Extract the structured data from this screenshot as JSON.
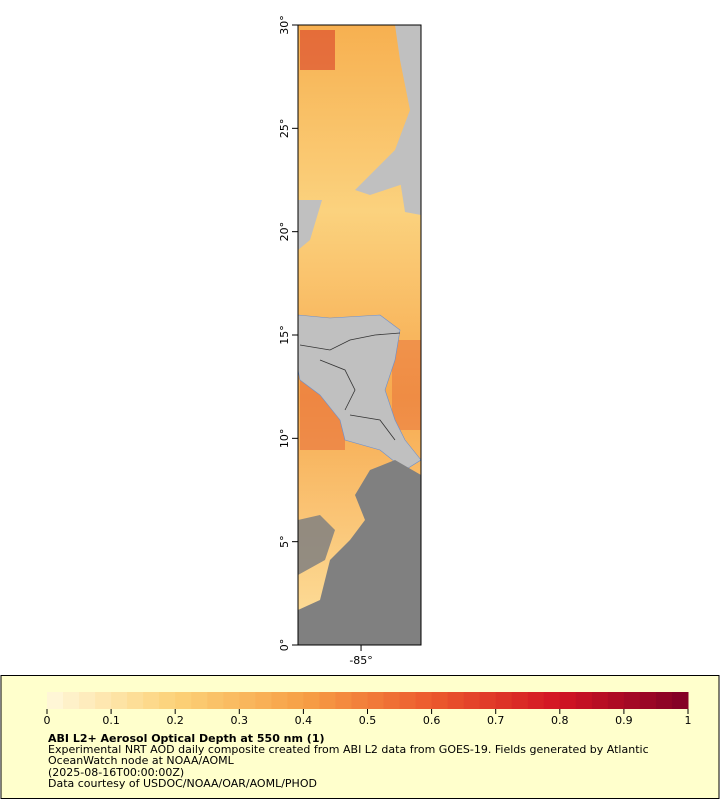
{
  "map": {
    "lat_axis": {
      "lim": [
        0,
        30
      ],
      "ticks": [
        {
          "value": 0,
          "label": "0°"
        },
        {
          "value": 5,
          "label": "5°"
        },
        {
          "value": 10,
          "label": "10°"
        },
        {
          "value": 15,
          "label": "15°"
        },
        {
          "value": 20,
          "label": "20°"
        },
        {
          "value": 25,
          "label": "25°"
        },
        {
          "value": 30,
          "label": "30°"
        }
      ]
    },
    "lon_axis": {
      "lim": [
        -88.05,
        -82.1
      ],
      "ticks": [
        {
          "value": -85,
          "label": "-85°"
        }
      ]
    }
  },
  "legend": {
    "colorbar": {
      "lim": [
        0,
        1
      ],
      "ticks": [
        0,
        0.1,
        0.2,
        0.3,
        0.4,
        0.5,
        0.6,
        0.7,
        0.8,
        0.9,
        1
      ]
    },
    "title": "ABI L2+ Aerosol Optical Depth at 550 nm (1)",
    "lines": [
      "Experimental NRT AOD daily composite created from ABI L2 data from GOES-19. Fields generated by Atlantic",
      "OceanWatch node at NOAA/AOML",
      "(2025-08-16T00:00:00Z)",
      "Data courtesy of USDOC/NOAA/OAR/AOML/PHOD"
    ]
  }
}
